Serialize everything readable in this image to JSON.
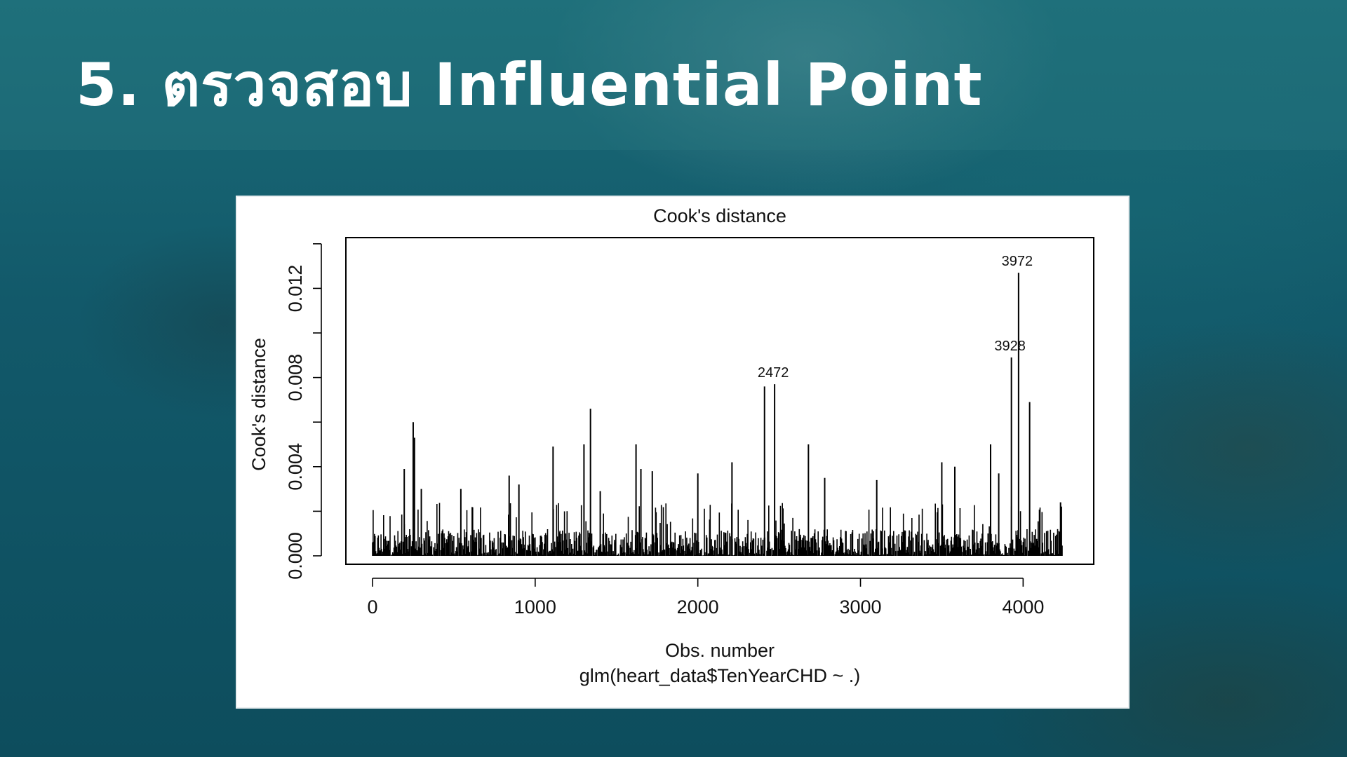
{
  "slide": {
    "title": "5. ตรวจสอบ Influential Point"
  },
  "chart_data": {
    "type": "bar",
    "title": "Cook's distance",
    "xlabel": "Obs. number",
    "subtitle": "glm(heart_data$TenYearCHD ~ .)",
    "ylabel": "Cook's distance",
    "xlim": [
      0,
      4240
    ],
    "ylim": [
      0,
      0.0139
    ],
    "x_ticks": [
      0,
      1000,
      2000,
      3000,
      4000
    ],
    "y_ticks": [
      "0.000",
      "0.004",
      "0.008",
      "0.012"
    ],
    "grid": false,
    "legend": "none",
    "n_obs": 4240,
    "highlighted_points": [
      {
        "obs": 2472,
        "value": 0.0077,
        "label": "2472"
      },
      {
        "obs": 3928,
        "value": 0.0089,
        "label": "3928"
      },
      {
        "obs": 3972,
        "value": 0.0127,
        "label": "3972"
      }
    ],
    "notable_spikes": [
      {
        "obs": 195,
        "value": 0.0039
      },
      {
        "obs": 250,
        "value": 0.006
      },
      {
        "obs": 258,
        "value": 0.0053
      },
      {
        "obs": 300,
        "value": 0.003
      },
      {
        "obs": 543,
        "value": 0.003
      },
      {
        "obs": 840,
        "value": 0.0036
      },
      {
        "obs": 900,
        "value": 0.0032
      },
      {
        "obs": 1110,
        "value": 0.0049
      },
      {
        "obs": 1300,
        "value": 0.005
      },
      {
        "obs": 1340,
        "value": 0.0066
      },
      {
        "obs": 1400,
        "value": 0.0029
      },
      {
        "obs": 1620,
        "value": 0.005
      },
      {
        "obs": 1650,
        "value": 0.0039
      },
      {
        "obs": 1720,
        "value": 0.0038
      },
      {
        "obs": 2000,
        "value": 0.0037
      },
      {
        "obs": 2210,
        "value": 0.0042
      },
      {
        "obs": 2410,
        "value": 0.0076
      },
      {
        "obs": 2680,
        "value": 0.005
      },
      {
        "obs": 2780,
        "value": 0.0035
      },
      {
        "obs": 3100,
        "value": 0.0034
      },
      {
        "obs": 3500,
        "value": 0.0042
      },
      {
        "obs": 3580,
        "value": 0.004
      },
      {
        "obs": 3800,
        "value": 0.005
      },
      {
        "obs": 3850,
        "value": 0.0037
      },
      {
        "obs": 4040,
        "value": 0.0069
      },
      {
        "obs": 4230,
        "value": 0.0024
      }
    ],
    "background_level": {
      "typical_max": 0.0012,
      "note": "dense low spikes between 0.000 and ~0.0015 across all observations"
    },
    "bar_color": "#000000"
  }
}
